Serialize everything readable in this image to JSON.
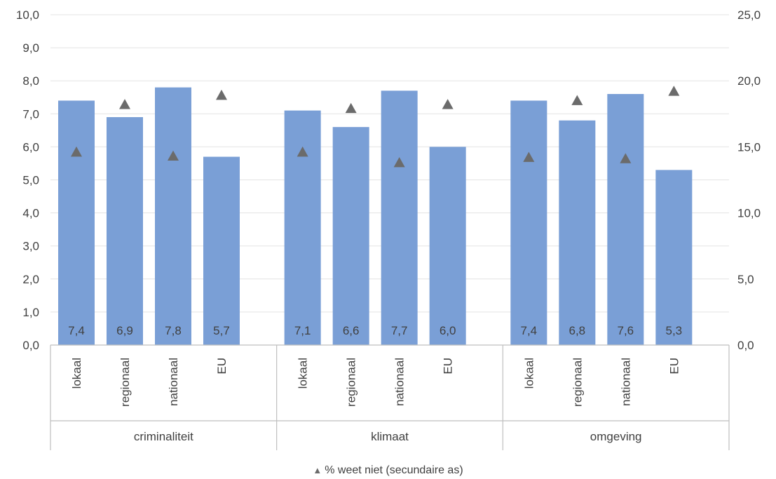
{
  "chart_data": {
    "type": "bar",
    "groups": [
      "criminaliteit",
      "klimaat",
      "omgeving"
    ],
    "categories": [
      "lokaal",
      "regionaal",
      "nationaal",
      "EU"
    ],
    "series": [
      {
        "values": [
          [
            7.4,
            6.9,
            7.8,
            5.7
          ],
          [
            7.1,
            6.6,
            7.7,
            6.0
          ],
          [
            7.4,
            6.8,
            7.6,
            5.3
          ]
        ],
        "data_labels": [
          [
            "7,4",
            "6,9",
            "7,8",
            "5,7"
          ],
          [
            "7,1",
            "6,6",
            "7,7",
            "6,0"
          ],
          [
            "7,4",
            "6,8",
            "7,6",
            "5,3"
          ]
        ],
        "color": "#7a9fd6",
        "axis": "primary"
      },
      {
        "name": "% weet niet (secundaire as)",
        "marker": "triangle",
        "color": "#6b6b6b",
        "axis": "secondary",
        "values": [
          [
            14.6,
            18.2,
            14.3,
            18.9
          ],
          [
            14.6,
            17.9,
            13.8,
            18.2
          ],
          [
            14.2,
            18.5,
            14.1,
            19.2
          ]
        ]
      }
    ],
    "y_primary": {
      "min": 0,
      "max": 10,
      "step": 1,
      "ticks": [
        "0,0",
        "1,0",
        "2,0",
        "3,0",
        "4,0",
        "5,0",
        "6,0",
        "7,0",
        "8,0",
        "9,0",
        "10,0"
      ]
    },
    "y_secondary": {
      "min": 0,
      "max": 25,
      "step": 5,
      "ticks": [
        "0,0",
        "5,0",
        "10,0",
        "15,0",
        "20,0",
        "25,0"
      ]
    },
    "grid": true,
    "legend_position": "bottom"
  },
  "legend": {
    "marker": "▲",
    "label": "% weet niet (secundaire as)"
  }
}
